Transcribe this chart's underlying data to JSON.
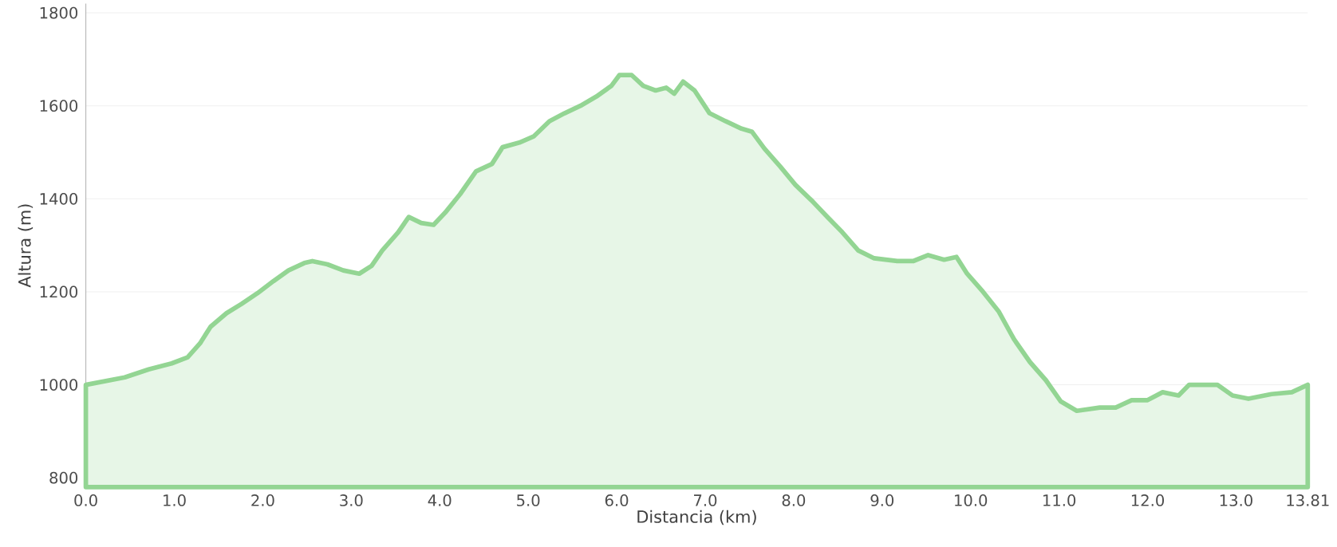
{
  "chart_data": {
    "type": "area",
    "xlabel": "Distancia   (km)",
    "ylabel": "Altura (m)",
    "xlim": [
      0,
      13.81
    ],
    "ylim": [
      780,
      1820
    ],
    "xticks": [
      {
        "value": 0,
        "label": "0.0"
      },
      {
        "value": 1,
        "label": "1.0"
      },
      {
        "value": 2,
        "label": "2.0"
      },
      {
        "value": 3,
        "label": "3.0"
      },
      {
        "value": 4,
        "label": "4.0"
      },
      {
        "value": 5,
        "label": "5.0"
      },
      {
        "value": 6,
        "label": "6.0"
      },
      {
        "value": 7,
        "label": "7.0"
      },
      {
        "value": 8,
        "label": "8.0"
      },
      {
        "value": 9,
        "label": "9.0"
      },
      {
        "value": 10,
        "label": "10.0"
      },
      {
        "value": 11,
        "label": "11.0"
      },
      {
        "value": 12,
        "label": "12.0"
      },
      {
        "value": 13,
        "label": "13.0"
      },
      {
        "value": 13.81,
        "label": "13.81"
      }
    ],
    "yticks": [
      800,
      1000,
      1200,
      1400,
      1600,
      1800
    ],
    "grid": "y",
    "x": [
      0,
      0.44,
      0.71,
      0.97,
      1.15,
      1.29,
      1.41,
      1.59,
      1.76,
      1.94,
      2.12,
      2.29,
      2.47,
      2.56,
      2.73,
      2.91,
      3.09,
      3.23,
      3.35,
      3.53,
      3.65,
      3.79,
      3.93,
      4.06,
      4.23,
      4.41,
      4.59,
      4.71,
      4.9,
      5.06,
      5.24,
      5.41,
      5.59,
      5.77,
      5.94,
      6.03,
      6.17,
      6.3,
      6.44,
      6.56,
      6.65,
      6.75,
      6.88,
      7.05,
      7.23,
      7.41,
      7.53,
      7.67,
      7.85,
      8.02,
      8.2,
      8.38,
      8.55,
      8.73,
      8.91,
      9.17,
      9.35,
      9.52,
      9.7,
      9.84,
      9.96,
      10.14,
      10.32,
      10.49,
      10.67,
      10.85,
      11.02,
      11.2,
      11.46,
      11.64,
      11.82,
      12.0,
      12.17,
      12.35,
      12.47,
      12.65,
      12.79,
      12.96,
      13.14,
      13.4,
      13.63,
      13.81
    ],
    "series": [
      {
        "color": "#93d593",
        "values": [
          1000,
          1016,
          1033,
          1046,
          1059,
          1089,
          1125,
          1154,
          1174,
          1197,
          1223,
          1246,
          1262,
          1266,
          1259,
          1246,
          1239,
          1256,
          1289,
          1328,
          1361,
          1348,
          1344,
          1370,
          1410,
          1459,
          1475,
          1511,
          1521,
          1534,
          1567,
          1584,
          1600,
          1620,
          1643,
          1666,
          1666,
          1643,
          1633,
          1639,
          1626,
          1652,
          1633,
          1584,
          1567,
          1551,
          1544,
          1508,
          1469,
          1430,
          1397,
          1361,
          1328,
          1289,
          1272,
          1266,
          1266,
          1279,
          1269,
          1275,
          1239,
          1200,
          1157,
          1098,
          1049,
          1010,
          964,
          944,
          951,
          951,
          967,
          967,
          984,
          977,
          1000,
          1000,
          1000,
          977,
          970,
          980,
          984,
          1000
        ]
      }
    ]
  }
}
